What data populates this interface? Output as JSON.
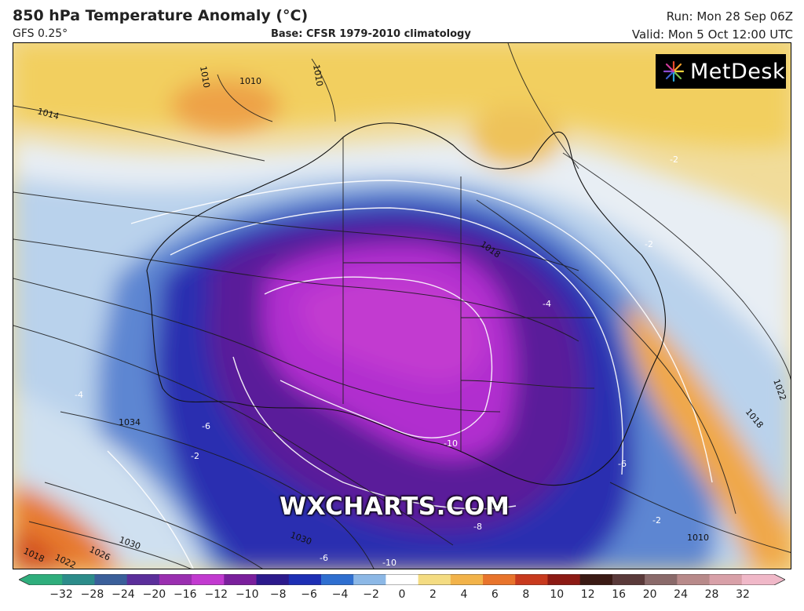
{
  "header": {
    "title": "850 hPa Temperature Anomaly (°C)",
    "model": "GFS 0.25°",
    "base": "Base: CFSR 1979-2010 climatology",
    "run": "Run: Mon 28 Sep 06Z",
    "valid": "Valid: Mon 5 Oct 12:00 UTC"
  },
  "logo": {
    "text": "MetDesk",
    "icon": "starburst-logo-icon"
  },
  "watermark": "WXCHARTS.COM",
  "map": {
    "isobar_labels": [
      "1010",
      "1010",
      "1010",
      "1014",
      "1018",
      "1018",
      "1022",
      "1034",
      "1030",
      "1030",
      "1026",
      "1022",
      "1018",
      "1010"
    ],
    "anomaly_labels": [
      "-2",
      "-2",
      "-2",
      "-4",
      "-4",
      "-6",
      "-6",
      "-8",
      "-10",
      "-10",
      "-2",
      "-6"
    ]
  },
  "colorbar": {
    "ticks": [
      "−32",
      "−28",
      "−24",
      "−20",
      "−16",
      "−12",
      "−10",
      "−8",
      "−6",
      "−4",
      "−2",
      "0",
      "2",
      "4",
      "6",
      "8",
      "10",
      "12",
      "16",
      "20",
      "24",
      "28",
      "32"
    ],
    "colors": [
      "#2fae7c",
      "#2c8c8a",
      "#3a5f9a",
      "#5b2f9b",
      "#9a2fb0",
      "#c23ad0",
      "#7a1f9c",
      "#2c1a8c",
      "#1d2fb4",
      "#2f6fd0",
      "#8cb8e6",
      "#ffffff",
      "#f4dc82",
      "#f2b34a",
      "#e8742c",
      "#c83a1e",
      "#8c1a14",
      "#3a1a14",
      "#5a3a3a",
      "#8a6a6a",
      "#b88a8a",
      "#d8a0a8",
      "#f0b8c8"
    ]
  }
}
